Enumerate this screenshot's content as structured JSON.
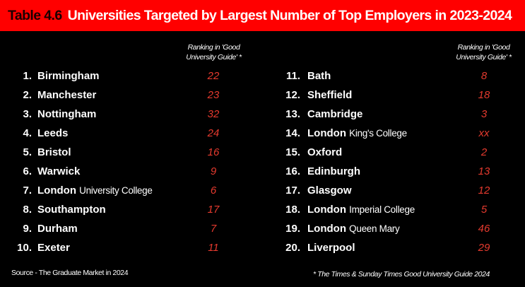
{
  "header": {
    "table_number": "Table 4.6",
    "title": "Universities Targeted by Largest Number of Top Employers in 2023-2024"
  },
  "column_header": [
    "Ranking in 'Good",
    "University Guide' *"
  ],
  "accent_color": "#e53a2e",
  "banner_color": "#ff0000",
  "left": [
    {
      "n": "1.",
      "bold": "Birmingham",
      "rest": "",
      "rank": "22"
    },
    {
      "n": "2.",
      "bold": "Manchester",
      "rest": "",
      "rank": "23"
    },
    {
      "n": "3.",
      "bold": "Nottingham",
      "rest": "",
      "rank": "32"
    },
    {
      "n": "4.",
      "bold": "Leeds",
      "rest": "",
      "rank": "24"
    },
    {
      "n": "5.",
      "bold": "Bristol",
      "rest": "",
      "rank": "16"
    },
    {
      "n": "6.",
      "bold": "Warwick",
      "rest": "",
      "rank": "9"
    },
    {
      "n": "7.",
      "bold": "London",
      "rest": "University College",
      "rank": "6"
    },
    {
      "n": "8.",
      "bold": "Southampton",
      "rest": "",
      "rank": "17"
    },
    {
      "n": "9.",
      "bold": "Durham",
      "rest": "",
      "rank": "7"
    },
    {
      "n": "10.",
      "bold": "Exeter",
      "rest": "",
      "rank": "11"
    }
  ],
  "right": [
    {
      "n": "11.",
      "bold": "Bath",
      "rest": "",
      "rank": "8"
    },
    {
      "n": "12.",
      "bold": "Sheffield",
      "rest": "",
      "rank": "18"
    },
    {
      "n": "13.",
      "bold": "Cambridge",
      "rest": "",
      "rank": "3"
    },
    {
      "n": "14.",
      "bold": "London",
      "rest": "King's College",
      "rank": "xx"
    },
    {
      "n": "15.",
      "bold": "Oxford",
      "rest": "",
      "rank": "2"
    },
    {
      "n": "16.",
      "bold": "Edinburgh",
      "rest": "",
      "rank": "13"
    },
    {
      "n": "17.",
      "bold": "Glasgow",
      "rest": "",
      "rank": "12"
    },
    {
      "n": "18.",
      "bold": "London",
      "rest": "Imperial College",
      "rank": "5"
    },
    {
      "n": "19.",
      "bold": "London",
      "rest": "Queen Mary",
      "rank": "46"
    },
    {
      "n": "20.",
      "bold": "Liverpool",
      "rest": "",
      "rank": "29"
    }
  ],
  "footer": {
    "source": "Source - The Graduate Market in 2024",
    "note": "* The Times & Sunday Times Good University Guide 2024"
  }
}
